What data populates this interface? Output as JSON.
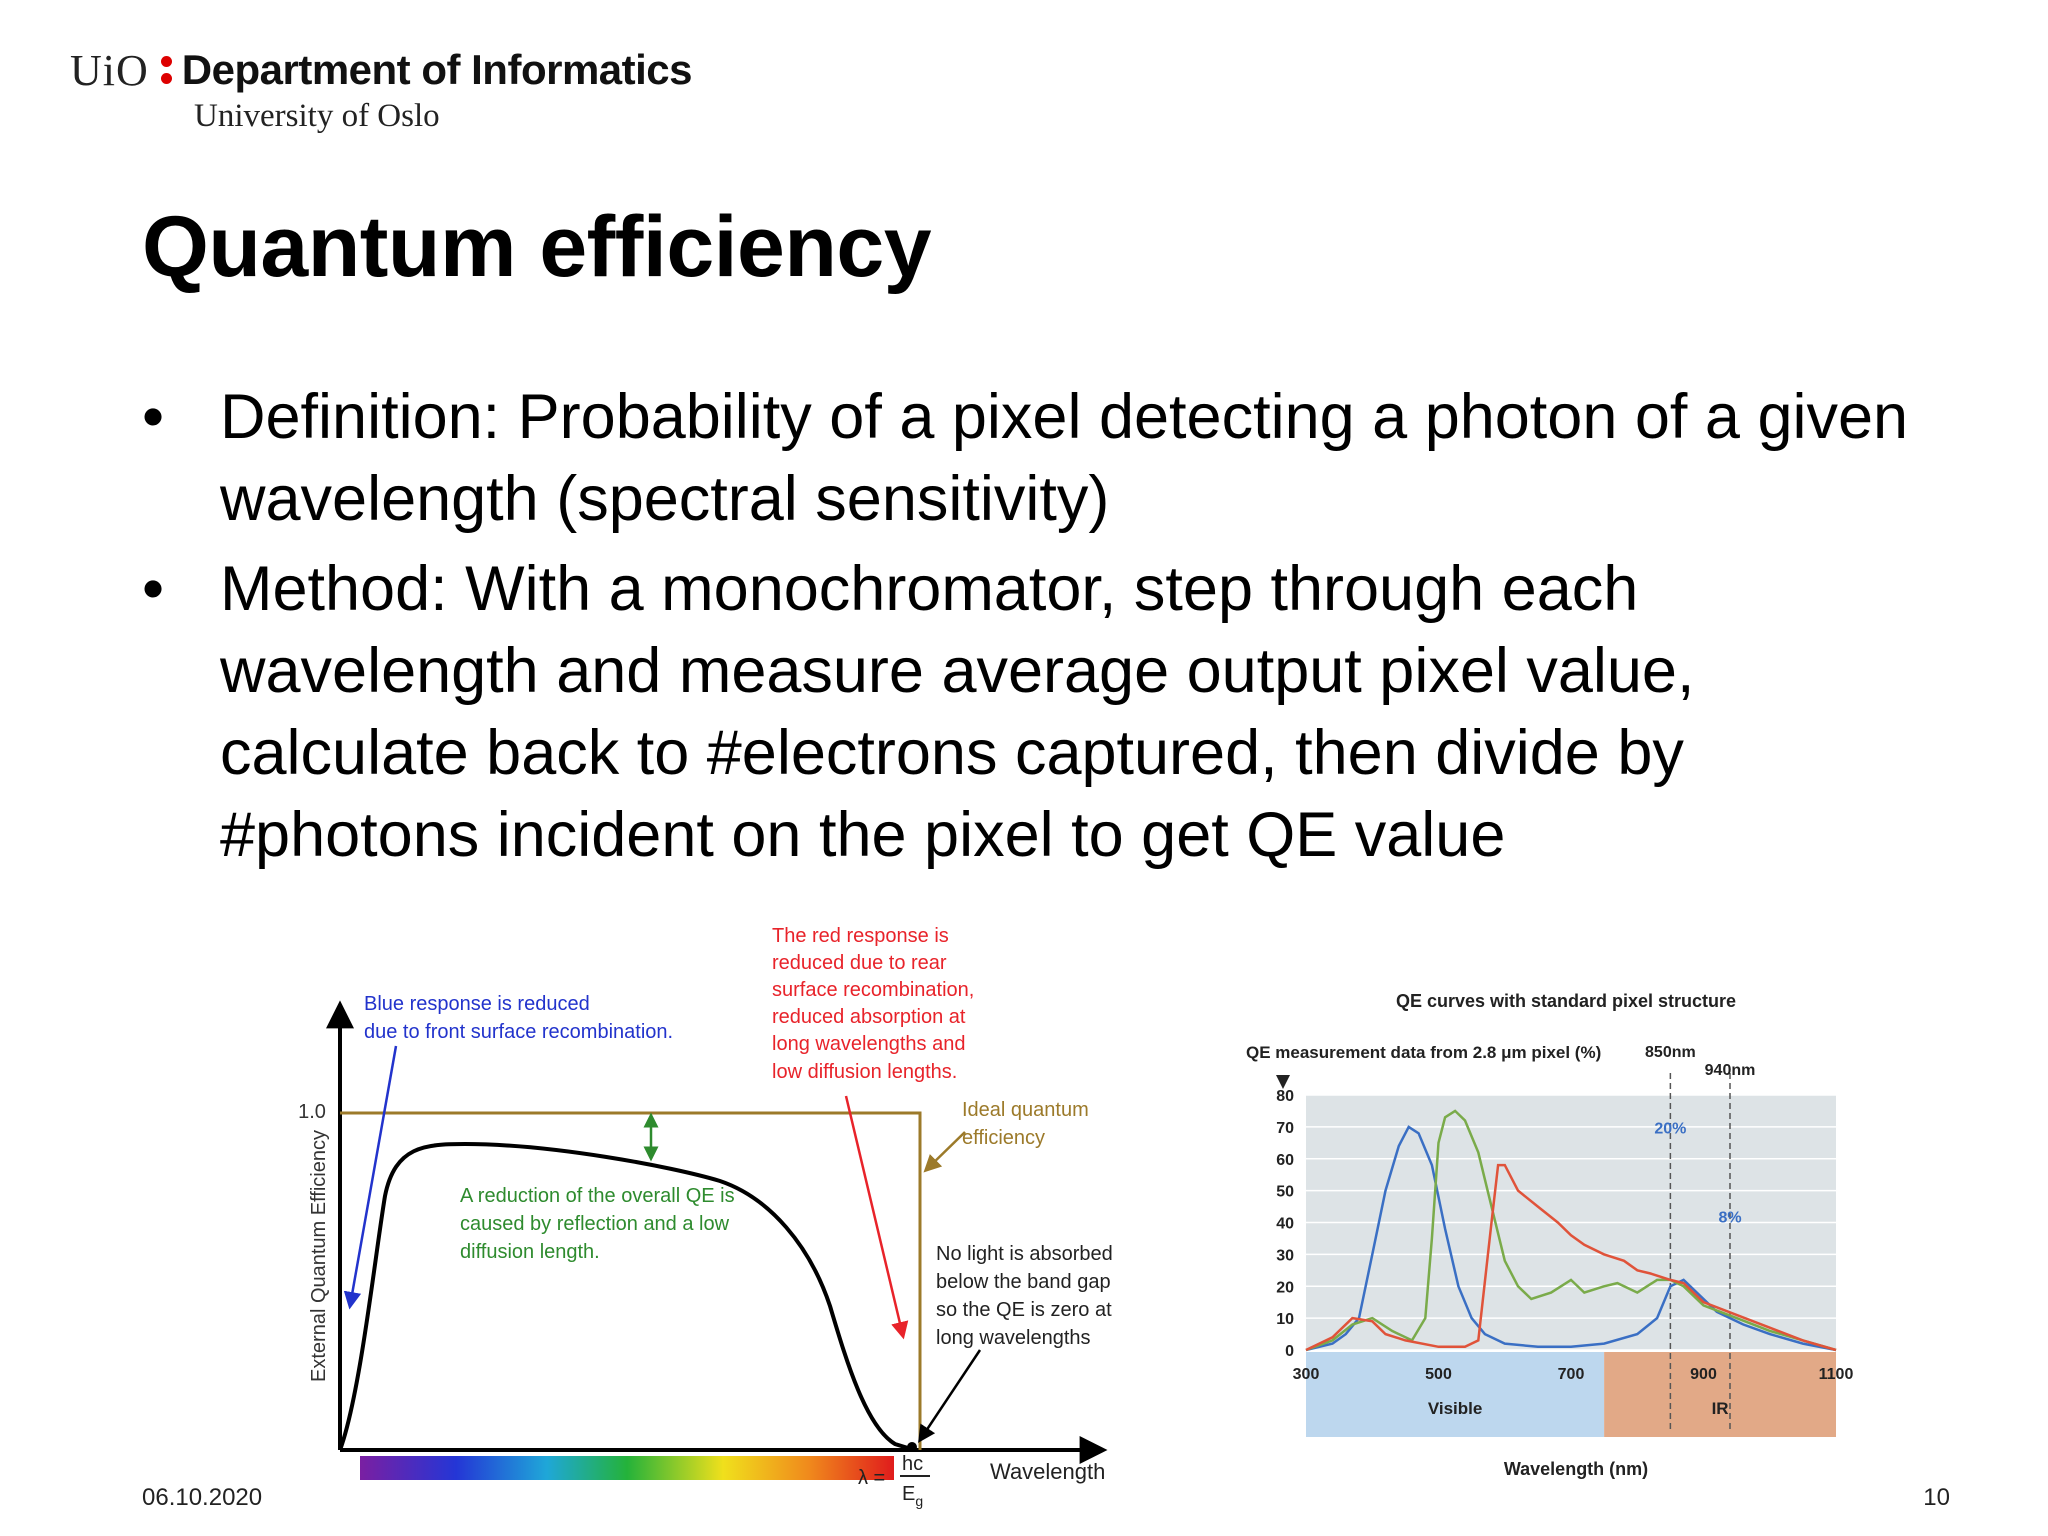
{
  "header": {
    "logo_text": "UiO",
    "department": "Department of Informatics",
    "university": "University of Oslo"
  },
  "slide": {
    "title": "Quantum efficiency",
    "bullets": [
      {
        "text": "Definition: Probability of a pixel detecting a photon of a given wavelength (spectral sensitivity)"
      },
      {
        "text": "Method: With a monochromator, step through each wavelength and measure average output pixel value, calculate back to #electrons captured, then divide by #photons incident on the pixel to get QE value"
      }
    ],
    "bullet_glyph": "•"
  },
  "left_figure": {
    "y_axis_label": "External Quantum Efficiency",
    "y_tick": "1.0",
    "x_axis_label": "Wavelength",
    "lambda_label": "λ =",
    "hc_label": "hc",
    "eg_label": "E",
    "eg_sub": "g",
    "ann_blue": [
      "Blue response is reduced",
      "due to front surface recombination."
    ],
    "ann_red": [
      "The red response is",
      "reduced due to rear",
      "surface recombination,",
      "reduced absorption at",
      "long wavelengths and",
      "low diffusion lengths."
    ],
    "ann_ideal": [
      "Ideal quantum",
      "efficiency"
    ],
    "ann_green": [
      "A reduction of the overall QE is",
      "caused by reflection and a low",
      "diffusion length."
    ],
    "ann_nolight": [
      "No light  is absorbed",
      "below the band gap",
      "so the QE is zero at",
      "long wavelengths"
    ],
    "colors": {
      "ideal": "#9c7a2a",
      "blue": "#2233cc",
      "red": "#e8232a",
      "green": "#2e8b2e"
    }
  },
  "chart_data": {
    "type": "line",
    "title": "QE curves with standard pixel structure",
    "subtitle": "QE measurement data from 2.8 μm pixel (%)",
    "xlabel": "Wavelength (nm)",
    "ylabel": "",
    "xlim": [
      300,
      1100
    ],
    "ylim": [
      0,
      80
    ],
    "x_ticks": [
      "300",
      "500",
      "700",
      "900",
      "1100"
    ],
    "y_ticks": [
      "0",
      "10",
      "20",
      "30",
      "40",
      "50",
      "60",
      "70",
      "80"
    ],
    "grid": true,
    "series": [
      {
        "color": "#3a6fc4",
        "points": [
          [
            300,
            0
          ],
          [
            340,
            2
          ],
          [
            360,
            5
          ],
          [
            380,
            10
          ],
          [
            400,
            30
          ],
          [
            420,
            50
          ],
          [
            440,
            64
          ],
          [
            455,
            70
          ],
          [
            470,
            68
          ],
          [
            490,
            58
          ],
          [
            510,
            38
          ],
          [
            530,
            20
          ],
          [
            550,
            10
          ],
          [
            570,
            5
          ],
          [
            600,
            2
          ],
          [
            650,
            1
          ],
          [
            700,
            1
          ],
          [
            750,
            2
          ],
          [
            800,
            5
          ],
          [
            830,
            10
          ],
          [
            850,
            20
          ],
          [
            870,
            22
          ],
          [
            890,
            18
          ],
          [
            920,
            12
          ],
          [
            960,
            8
          ],
          [
            1000,
            5
          ],
          [
            1050,
            2
          ],
          [
            1100,
            0
          ]
        ]
      },
      {
        "color": "#7aab4a",
        "points": [
          [
            300,
            0
          ],
          [
            340,
            3
          ],
          [
            370,
            8
          ],
          [
            400,
            10
          ],
          [
            430,
            6
          ],
          [
            460,
            3
          ],
          [
            480,
            10
          ],
          [
            490,
            35
          ],
          [
            500,
            65
          ],
          [
            510,
            73
          ],
          [
            525,
            75
          ],
          [
            540,
            72
          ],
          [
            560,
            62
          ],
          [
            580,
            45
          ],
          [
            600,
            28
          ],
          [
            620,
            20
          ],
          [
            640,
            16
          ],
          [
            670,
            18
          ],
          [
            700,
            22
          ],
          [
            720,
            18
          ],
          [
            750,
            20
          ],
          [
            770,
            21
          ],
          [
            800,
            18
          ],
          [
            830,
            22
          ],
          [
            850,
            22
          ],
          [
            870,
            20
          ],
          [
            900,
            14
          ],
          [
            950,
            10
          ],
          [
            1000,
            6
          ],
          [
            1050,
            3
          ],
          [
            1100,
            0
          ]
        ]
      },
      {
        "color": "#e0533a",
        "points": [
          [
            300,
            0
          ],
          [
            340,
            4
          ],
          [
            370,
            10
          ],
          [
            400,
            9
          ],
          [
            420,
            5
          ],
          [
            450,
            3
          ],
          [
            500,
            1
          ],
          [
            540,
            1
          ],
          [
            560,
            3
          ],
          [
            580,
            40
          ],
          [
            590,
            58
          ],
          [
            600,
            58
          ],
          [
            620,
            50
          ],
          [
            650,
            45
          ],
          [
            680,
            40
          ],
          [
            700,
            36
          ],
          [
            720,
            33
          ],
          [
            750,
            30
          ],
          [
            780,
            28
          ],
          [
            800,
            25
          ],
          [
            820,
            24
          ],
          [
            850,
            22
          ],
          [
            870,
            21
          ],
          [
            900,
            15
          ],
          [
            950,
            11
          ],
          [
            1000,
            7
          ],
          [
            1050,
            3
          ],
          [
            1100,
            0
          ]
        ]
      }
    ],
    "vlines": [
      {
        "label": "850nm",
        "x": 850
      },
      {
        "label": "940nm",
        "x": 940
      }
    ],
    "annotations": [
      {
        "text": "20%",
        "x": 850,
        "y": 68
      },
      {
        "text": "8%",
        "x": 940,
        "y": 40
      }
    ],
    "regions": [
      {
        "label": "Visible",
        "from": 300,
        "to": 750,
        "color": "#bdd7ee"
      },
      {
        "label": "IR",
        "from": 750,
        "to": 1100,
        "color": "#e2a987"
      }
    ]
  },
  "footer": {
    "date": "06.10.2020",
    "page": "10"
  }
}
